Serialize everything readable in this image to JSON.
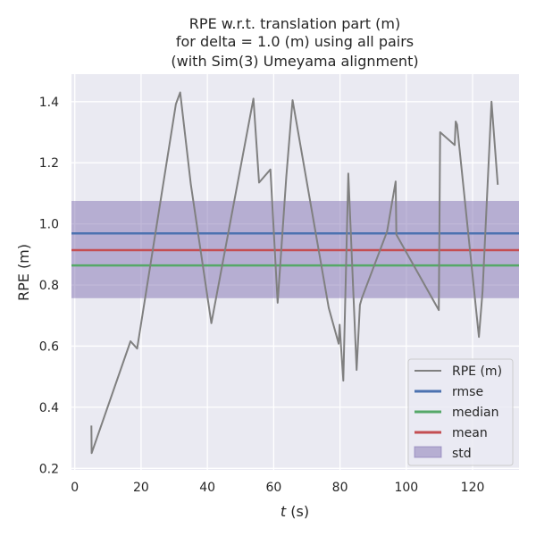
{
  "chart_data": {
    "type": "line",
    "title_lines": [
      "RPE w.r.t. translation part (m)",
      "for delta = 1.0 (m) using all pairs",
      "(with Sim(3) Umeyama alignment)"
    ],
    "xlabel_italic": "t",
    "xlabel_suffix": " (s)",
    "ylabel": "RPE (m)",
    "xlim": [
      -1,
      134
    ],
    "ylim": [
      0.195,
      1.49
    ],
    "xticks": [
      0,
      20,
      40,
      60,
      80,
      100,
      120
    ],
    "yticks": [
      0.2,
      0.4,
      0.6,
      0.8,
      1.0,
      1.2,
      1.4
    ],
    "xtick_labels": [
      "0",
      "20",
      "40",
      "60",
      "80",
      "100",
      "120"
    ],
    "ytick_labels": [
      "0.2",
      "0.4",
      "0.6",
      "0.8",
      "1.0",
      "1.2",
      "1.4"
    ],
    "grid": true,
    "background": "#eaeaf2",
    "series": [
      {
        "name": "RPE (m)",
        "color": "#808080",
        "x": [
          5.0,
          5.1,
          16.8,
          18.8,
          30.5,
          31.8,
          35.0,
          41.2,
          53.9,
          55.6,
          59.0,
          61.2,
          63.8,
          65.7,
          76.6,
          79.6,
          79.9,
          80.3,
          81.0,
          82.5,
          85.0,
          86.0,
          86.6,
          94.2,
          96.8,
          97.0,
          109.8,
          110.2,
          114.6,
          114.9,
          115.3,
          121.9,
          123.0,
          125.7,
          127.6
        ],
        "y": [
          0.34,
          0.25,
          0.616,
          0.592,
          1.392,
          1.43,
          1.13,
          0.675,
          1.41,
          1.135,
          1.178,
          0.742,
          1.155,
          1.405,
          0.725,
          0.608,
          0.67,
          0.6,
          0.487,
          1.165,
          0.522,
          0.735,
          0.757,
          0.975,
          1.139,
          0.965,
          0.718,
          1.3,
          1.258,
          1.335,
          1.325,
          0.63,
          0.78,
          1.4,
          1.128
        ]
      }
    ],
    "stats": {
      "rmse": {
        "label": "rmse",
        "value": 0.969,
        "color": "#4c72b0"
      },
      "median": {
        "label": "median",
        "value": 0.864,
        "color": "#55a868"
      },
      "mean": {
        "label": "mean",
        "value": 0.914,
        "color": "#c44e52"
      },
      "std": {
        "label": "std",
        "low": 0.757,
        "high": 1.075,
        "color": "#8172b2"
      }
    },
    "legend": {
      "position": "lower right",
      "entries": [
        "RPE (m)",
        "rmse",
        "median",
        "mean",
        "std"
      ]
    }
  }
}
